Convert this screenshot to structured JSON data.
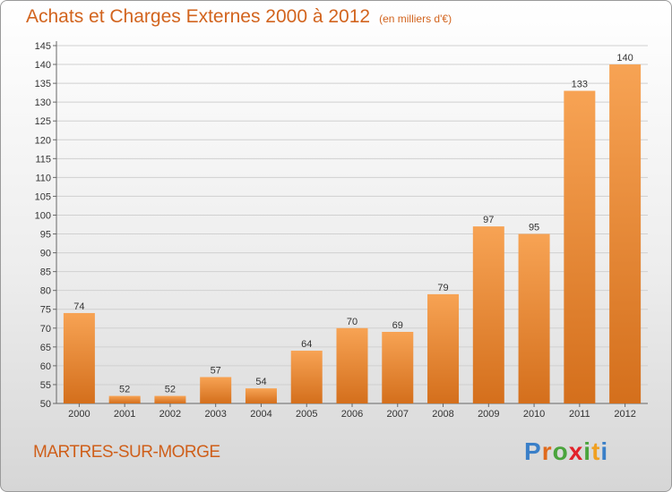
{
  "title": "Achats et Charges Externes 2000 à 2012",
  "subtitle": "(en milliers d'€)",
  "commune": "MARTRES-SUR-MORGE",
  "logo": {
    "letters": [
      "P",
      "r",
      "o",
      "x",
      "i",
      "t",
      "i"
    ],
    "colors": [
      "#3a7fc8",
      "#e06a1c",
      "#4aa43c",
      "#e2222a",
      "#4aa43c",
      "#f0a020",
      "#3a7fc8"
    ]
  },
  "colors": {
    "title": "#d2641e",
    "bar_light": "#f7a354",
    "bar_dark": "#d46f1c",
    "grid": "#d0d0d0"
  },
  "chart_data": {
    "type": "bar",
    "title": "Achats et Charges Externes 2000 à 2012",
    "subtitle": "(en milliers d'€)",
    "categories": [
      "2000",
      "2001",
      "2002",
      "2003",
      "2004",
      "2005",
      "2006",
      "2007",
      "2008",
      "2009",
      "2010",
      "2011",
      "2012"
    ],
    "values": [
      74,
      52,
      52,
      57,
      54,
      64,
      70,
      69,
      79,
      97,
      95,
      133,
      140
    ],
    "ylim": [
      50,
      145
    ],
    "ytick_step": 5,
    "grid": true
  }
}
